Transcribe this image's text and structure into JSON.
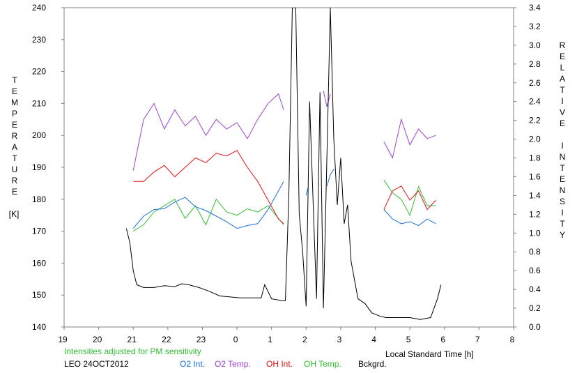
{
  "chart_data": {
    "type": "line",
    "left_axis": {
      "label": "TEMPERATURE",
      "unit": "[K]",
      "ticks": [
        "240",
        "230",
        "220",
        "210",
        "200",
        "190",
        "180",
        "170",
        "160",
        "150",
        "140"
      ],
      "range": [
        140,
        240
      ]
    },
    "right_axis": {
      "label": "RELATIVE INTENSITY",
      "ticks": [
        "3.4",
        "3.2",
        "3.0",
        "2.8",
        "2.6",
        "2.4",
        "2.2",
        "2.0",
        "1.8",
        "1.6",
        "1.4",
        "1.2",
        "1.0",
        "0.8",
        "0.6",
        "0.4",
        "0.2",
        "0.0"
      ],
      "range": [
        0,
        3.4
      ]
    },
    "x_axis": {
      "label": "Local Standard Time [h]",
      "ticks": [
        "19",
        "20",
        "21",
        "22",
        "23",
        "0",
        "1",
        "2",
        "3",
        "4",
        "5",
        "6",
        "7",
        "8"
      ]
    },
    "note": "Intensities adjusted for PM sensitivity",
    "site": "LEO 24OCT2012",
    "legend": [
      {
        "name": "O2 Int.",
        "color": "#1a6fe0"
      },
      {
        "name": "O2 Temp.",
        "color": "#a040d0"
      },
      {
        "name": "OH Int.",
        "color": "#e01010"
      },
      {
        "name": "OH Temp.",
        "color": "#30c030"
      },
      {
        "name": "Bckgrd.",
        "color": "#000000"
      }
    ],
    "series": [
      {
        "name": "O2 Temp.",
        "axis": "left",
        "color": "#a040d0",
        "segments": [
          {
            "x": [
              21.0,
              21.3,
              21.6,
              21.9,
              22.2,
              22.5,
              22.8,
              23.1,
              23.4,
              23.7,
              24.0,
              24.3,
              24.6,
              24.9,
              25.2,
              25.35
            ],
            "y": [
              189,
              205,
              210,
              202,
              208,
              203,
              206,
              200,
              205,
              202,
              204,
              199,
              205,
              210,
              213,
              208
            ]
          },
          {
            "x": [
              26.5,
              26.6,
              26.7
            ],
            "y": [
              214,
              209,
              213
            ]
          },
          {
            "x": [
              28.25,
              28.5,
              28.75,
              29.0,
              29.25,
              29.5,
              29.75
            ],
            "y": [
              198,
              193,
              205,
              197,
              202,
              199,
              200
            ]
          }
        ]
      },
      {
        "name": "OH Temp.",
        "axis": "left",
        "color": "#30c030",
        "segments": [
          {
            "x": [
              21.0,
              21.3,
              21.6,
              21.9,
              22.2,
              22.5,
              22.8,
              23.1,
              23.4,
              23.7,
              24.0,
              24.3,
              24.6,
              24.9,
              25.2,
              25.35
            ],
            "y": [
              170,
              172,
              176,
              178,
              180,
              174,
              178,
              172,
              180,
              176,
              175,
              177,
              176,
              178,
              174,
              172
            ]
          },
          {
            "x": [
              28.25,
              28.5,
              28.75,
              29.0,
              29.25,
              29.5,
              29.75
            ],
            "y": [
              186,
              182,
              180,
              175,
              184,
              178,
              178
            ]
          }
        ]
      },
      {
        "name": "O2 Int.",
        "axis": "right",
        "color": "#1a6fe0",
        "segments": [
          {
            "x": [
              21.0,
              21.3,
              21.6,
              21.9,
              22.2,
              22.5,
              22.8,
              23.1,
              23.4,
              23.7,
              24.0,
              24.3,
              24.6,
              24.9,
              25.2,
              25.35
            ],
            "y": [
              1.05,
              1.18,
              1.25,
              1.26,
              1.33,
              1.38,
              1.28,
              1.24,
              1.18,
              1.12,
              1.05,
              1.08,
              1.1,
              1.25,
              1.45,
              1.55
            ]
          },
          {
            "x": [
              26.0,
              26.05
            ],
            "y": [
              1.4,
              1.48
            ]
          },
          {
            "x": [
              26.6,
              26.7,
              26.8
            ],
            "y": [
              1.5,
              1.62,
              1.68
            ]
          },
          {
            "x": [
              28.25,
              28.5,
              28.75,
              29.0,
              29.25,
              29.5,
              29.75
            ],
            "y": [
              1.25,
              1.15,
              1.1,
              1.12,
              1.08,
              1.15,
              1.1
            ]
          }
        ]
      },
      {
        "name": "OH Int.",
        "axis": "right",
        "color": "#e01010",
        "segments": [
          {
            "x": [
              21.0,
              21.3,
              21.6,
              21.9,
              22.2,
              22.5,
              22.8,
              23.1,
              23.4,
              23.7,
              24.0,
              24.3,
              24.6,
              24.9,
              25.2,
              25.35
            ],
            "y": [
              1.55,
              1.55,
              1.65,
              1.72,
              1.6,
              1.7,
              1.8,
              1.75,
              1.85,
              1.82,
              1.88,
              1.7,
              1.55,
              1.35,
              1.15,
              1.1
            ]
          },
          {
            "x": [
              28.25,
              28.5,
              28.75,
              29.0,
              29.25,
              29.5,
              29.75
            ],
            "y": [
              1.25,
              1.45,
              1.5,
              1.35,
              1.45,
              1.25,
              1.35
            ]
          }
        ]
      },
      {
        "name": "Bckgrd.",
        "axis": "right",
        "color": "#000000",
        "segments": [
          {
            "x": [
              20.8,
              20.9,
              21.0,
              21.1,
              21.3,
              21.6,
              21.9,
              22.2,
              22.4,
              22.6,
              22.9,
              23.2,
              23.5,
              23.8,
              24.1,
              24.4,
              24.7,
              24.8,
              25.0,
              25.3,
              25.4,
              25.5,
              25.6,
              25.7,
              25.8,
              25.9,
              26.0,
              26.1,
              26.3,
              26.4,
              26.5,
              26.6,
              26.7,
              26.8,
              26.9,
              27.0,
              27.1,
              27.2,
              27.3,
              27.5,
              27.7,
              27.9,
              28.1,
              28.3,
              28.5,
              28.7,
              29.0,
              29.3,
              29.6,
              29.8,
              29.9
            ],
            "y": [
              1.05,
              0.9,
              0.6,
              0.45,
              0.42,
              0.42,
              0.44,
              0.43,
              0.46,
              0.45,
              0.42,
              0.38,
              0.33,
              0.32,
              0.31,
              0.31,
              0.31,
              0.45,
              0.3,
              0.28,
              0.28,
              1.4,
              3.4,
              3.4,
              1.2,
              0.8,
              0.22,
              2.4,
              0.3,
              2.5,
              0.2,
              1.8,
              3.4,
              2.0,
              1.3,
              1.8,
              1.1,
              1.3,
              0.7,
              0.3,
              0.25,
              0.15,
              0.12,
              0.1,
              0.1,
              0.1,
              0.1,
              0.08,
              0.1,
              0.3,
              0.45
            ]
          }
        ]
      }
    ]
  }
}
